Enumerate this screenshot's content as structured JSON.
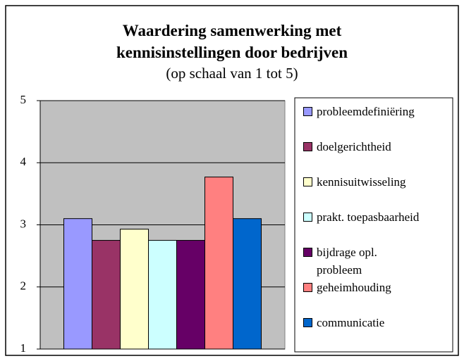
{
  "chart_data": {
    "type": "bar",
    "title": "Waardering samenwerking met kennisinstellingen door bedrijven",
    "subtitle": "(op schaal van 1 tot 5)",
    "categories": [
      null
    ],
    "series": [
      {
        "name": "probleemdefiniëring",
        "color": "#9999ff",
        "values": [
          3.1
        ]
      },
      {
        "name": "doelgerichtheid",
        "color": "#993366",
        "values": [
          2.75
        ]
      },
      {
        "name": "kennisuitwisseling",
        "color": "#ffffcc",
        "values": [
          2.93
        ]
      },
      {
        "name": "prakt. toepasbaarheid",
        "color": "#ccffff",
        "values": [
          2.75
        ]
      },
      {
        "name": "bijdrage opl. probleem",
        "color": "#660066",
        "values": [
          2.75
        ]
      },
      {
        "name": "geheimhouding",
        "color": "#ff8080",
        "values": [
          3.77
        ]
      },
      {
        "name": "communicatie",
        "color": "#0066cc",
        "values": [
          3.1
        ]
      }
    ],
    "ylim": [
      1,
      5
    ],
    "yticks": [
      1,
      2,
      3,
      4,
      5
    ],
    "grid": true,
    "legend": "right"
  }
}
